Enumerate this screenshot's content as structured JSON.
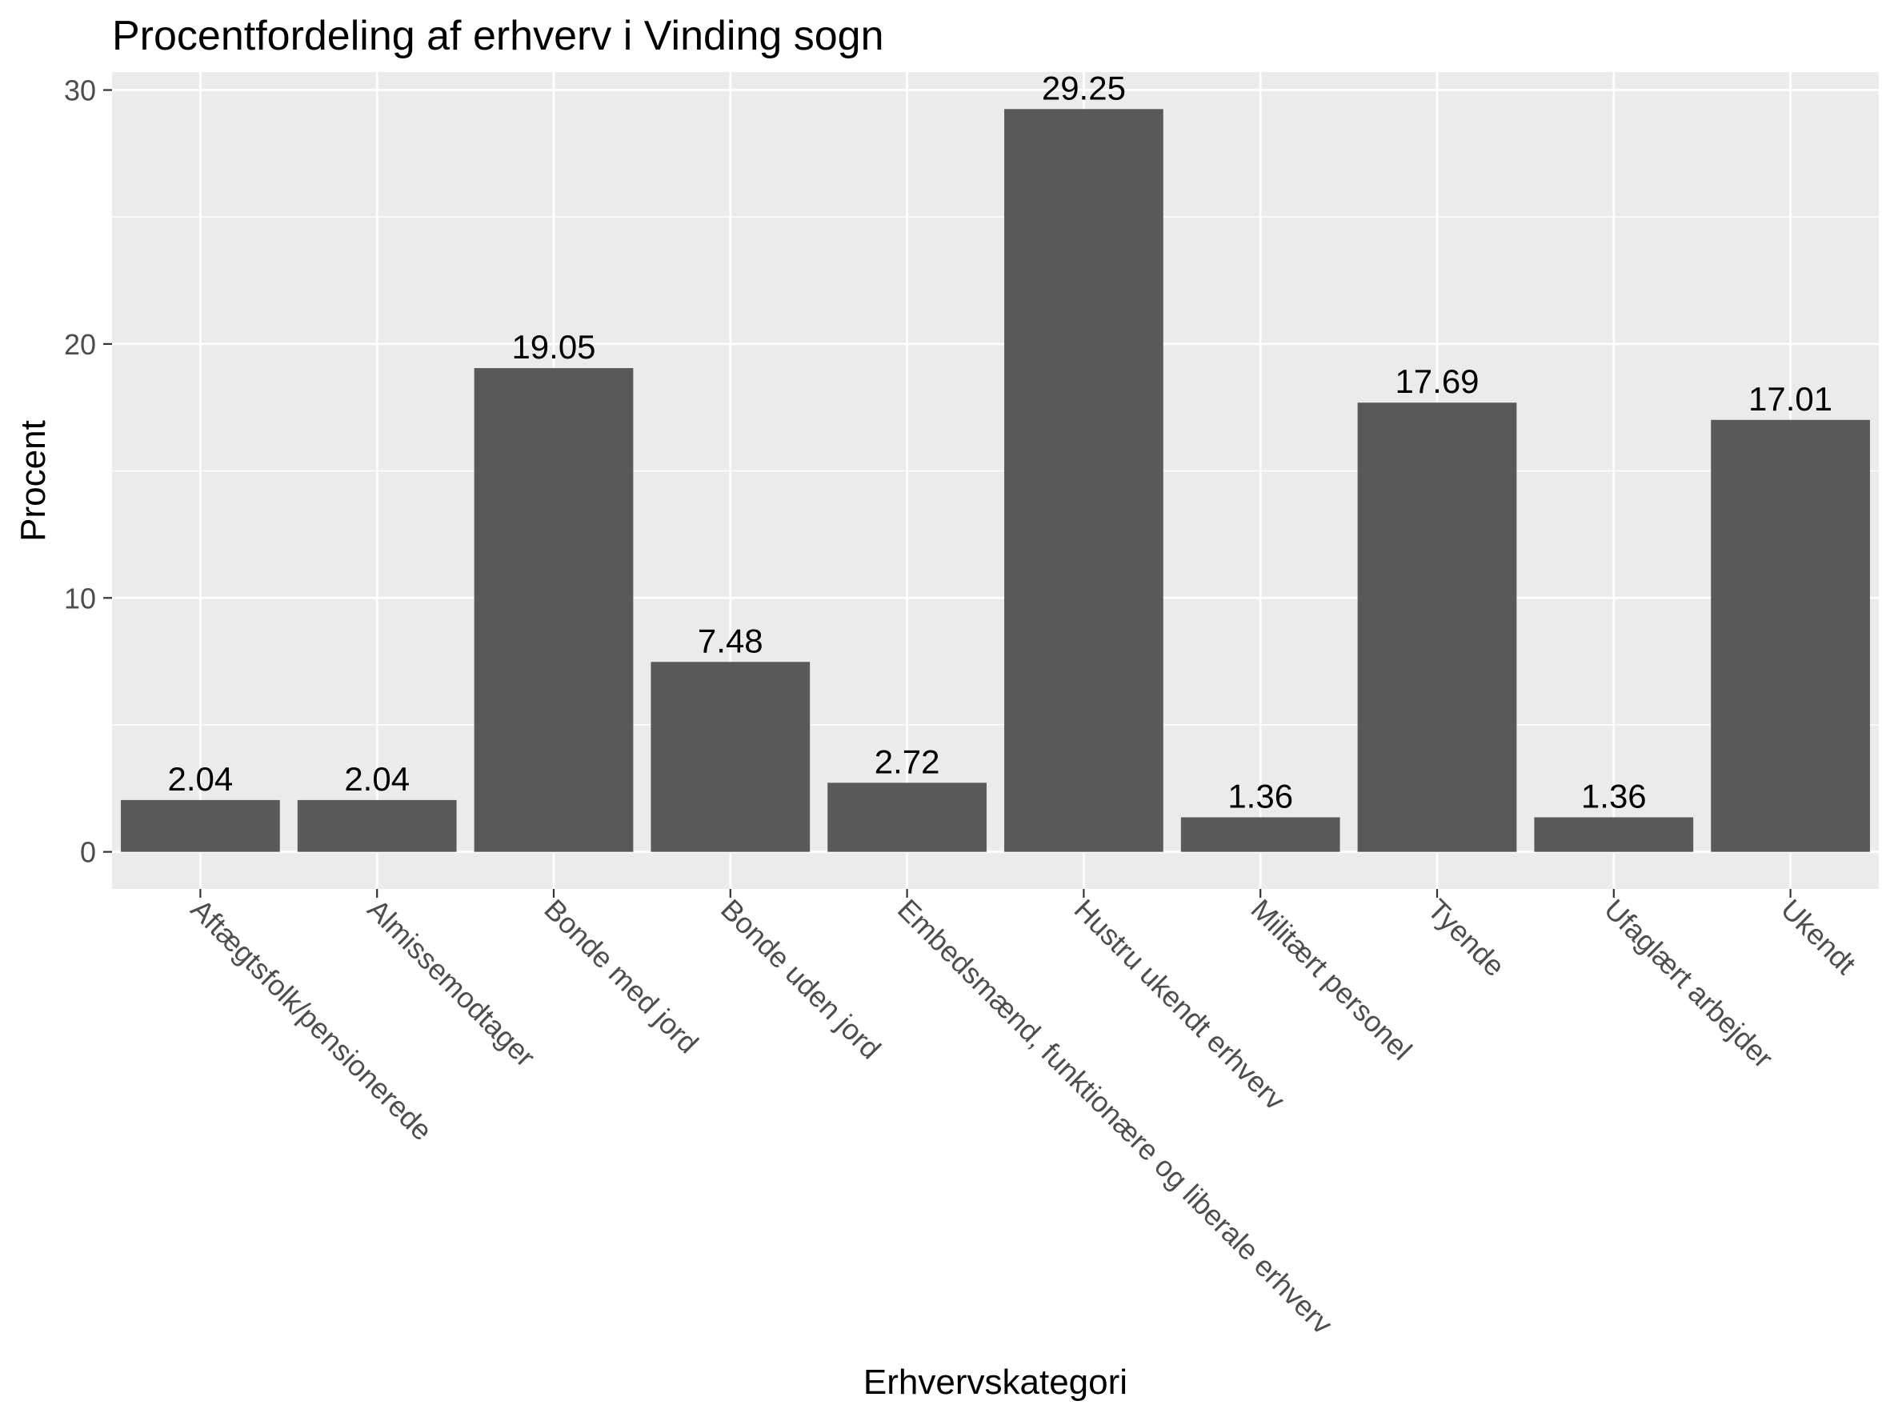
{
  "chart_data": {
    "type": "bar",
    "title": "Procentfordeling af erhverv i Vinding sogn",
    "xlabel": "Erhvervskategori",
    "ylabel": "Procent",
    "categories": [
      "Aftægtsfolk/pensionerede",
      "Almissemodtager",
      "Bonde med jord",
      "Bonde uden jord",
      "Embedsmænd, funktionære og liberale erhverv",
      "Hustru ukendt erhverv",
      "Militært personel",
      "Tyende",
      "Ufaglært arbejder",
      "Ukendt"
    ],
    "values": [
      2.04,
      2.04,
      19.05,
      7.48,
      2.72,
      29.25,
      1.36,
      17.69,
      1.36,
      17.01
    ],
    "value_labels": [
      "2.04",
      "2.04",
      "19.05",
      "7.48",
      "2.72",
      "29.25",
      "1.36",
      "17.69",
      "1.36",
      "17.01"
    ],
    "y_ticks": [
      0,
      10,
      20,
      30
    ],
    "y_tick_labels": [
      "0",
      "10",
      "20",
      "30"
    ],
    "ylim": [
      -1.46,
      30.71
    ],
    "grid": true,
    "colors": {
      "bar": "#595959",
      "panel": "#ebebeb",
      "grid": "#ffffff",
      "tick_text": "#4d4d4d",
      "tick_mark": "#333333"
    }
  }
}
